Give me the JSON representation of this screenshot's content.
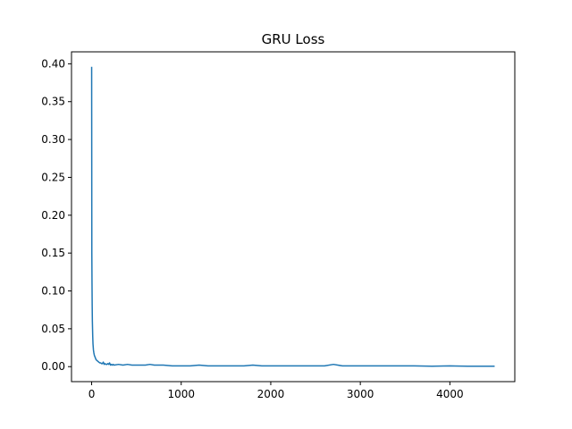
{
  "chart_data": {
    "type": "line",
    "title": "GRU Loss",
    "xlabel": "",
    "ylabel": "",
    "xlim": [
      -225,
      4725
    ],
    "ylim": [
      -0.0198,
      0.4158
    ],
    "xticks": [
      0,
      1000,
      2000,
      3000,
      4000
    ],
    "xtick_labels": [
      "0",
      "1000",
      "2000",
      "3000",
      "4000"
    ],
    "yticks": [
      0.0,
      0.05,
      0.1,
      0.15,
      0.2,
      0.25,
      0.3,
      0.35,
      0.4
    ],
    "ytick_labels": [
      "0.00",
      "0.05",
      "0.10",
      "0.15",
      "0.20",
      "0.25",
      "0.30",
      "0.35",
      "0.40"
    ],
    "grid": false,
    "line_color": "#1f77b4",
    "series": [
      {
        "x": [
          0,
          2,
          4,
          6,
          8,
          10,
          12,
          15,
          20,
          25,
          30,
          40,
          50,
          60,
          70,
          80,
          90,
          100,
          110,
          120,
          130,
          140,
          150,
          160,
          170,
          180,
          190,
          200,
          210,
          220,
          230,
          240,
          250,
          300,
          350,
          400,
          450,
          500,
          550,
          600,
          650,
          700,
          800,
          900,
          1000,
          1100,
          1200,
          1300,
          1400,
          1500,
          1600,
          1700,
          1800,
          1900,
          2000,
          2200,
          2400,
          2600,
          2700,
          2800,
          3000,
          3200,
          3400,
          3600,
          3800,
          4000,
          4200,
          4400,
          4500
        ],
        "y": [
          0.396,
          0.15,
          0.11,
          0.08,
          0.06,
          0.05,
          0.04,
          0.03,
          0.022,
          0.018,
          0.015,
          0.012,
          0.009,
          0.008,
          0.007,
          0.006,
          0.005,
          0.005,
          0.004,
          0.004,
          0.006,
          0.003,
          0.004,
          0.003,
          0.003,
          0.004,
          0.003,
          0.005,
          0.002,
          0.003,
          0.002,
          0.003,
          0.002,
          0.003,
          0.002,
          0.003,
          0.002,
          0.002,
          0.002,
          0.002,
          0.003,
          0.002,
          0.002,
          0.001,
          0.001,
          0.001,
          0.002,
          0.001,
          0.001,
          0.001,
          0.001,
          0.001,
          0.002,
          0.001,
          0.001,
          0.001,
          0.001,
          0.001,
          0.003,
          0.001,
          0.001,
          0.001,
          0.001,
          0.001,
          0.0005,
          0.001,
          0.0005,
          0.0005,
          0.0005
        ]
      }
    ]
  }
}
